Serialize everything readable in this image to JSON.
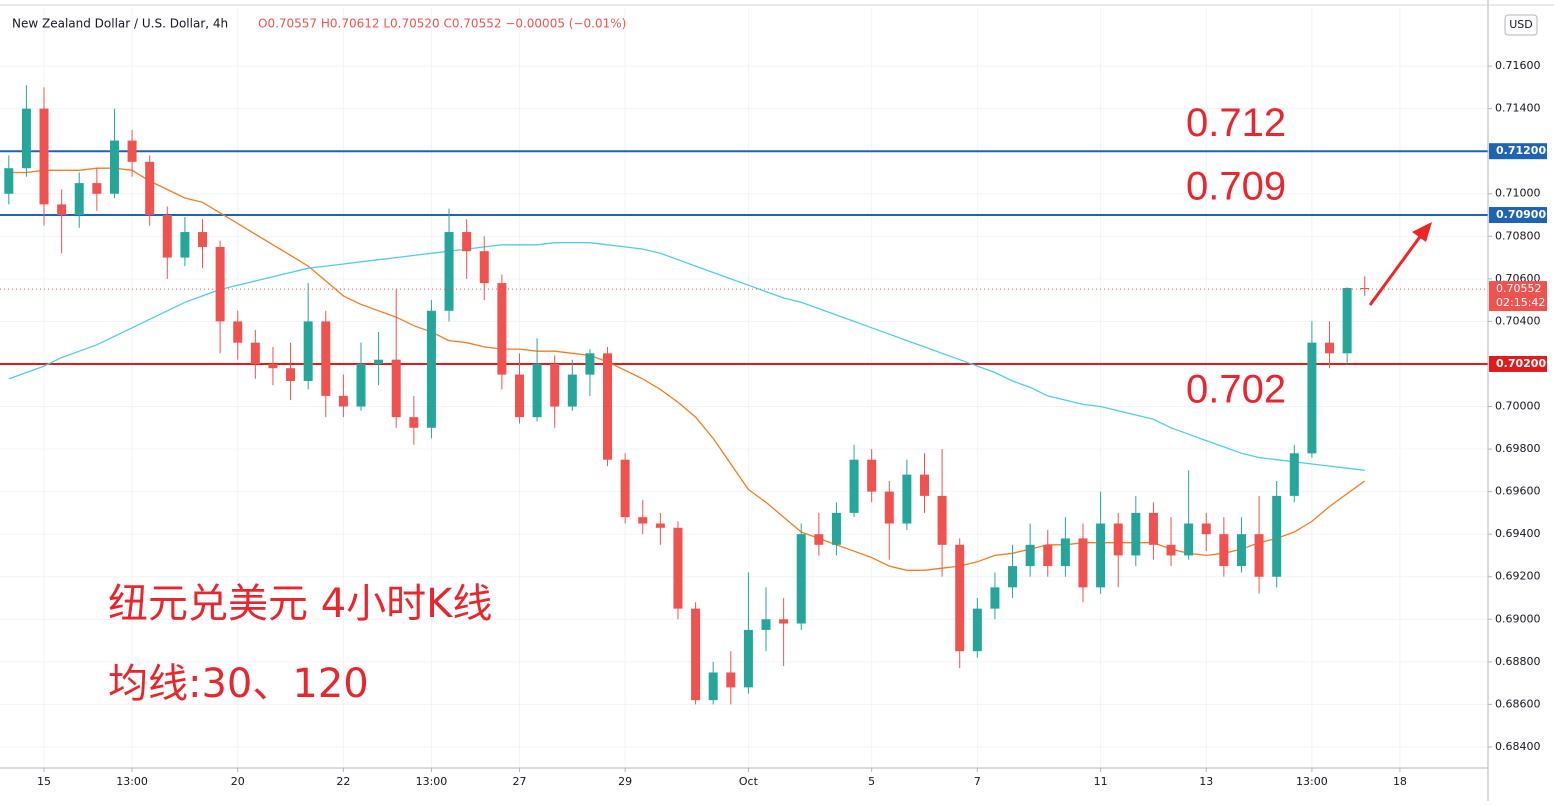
{
  "chart_data": {
    "type": "candlestick",
    "symbol": "New Zealand Dollar / U.S. Dollar, 4h",
    "ohlc_text": "O0.70557 H0.70612 L0.70520 C0.70552 −0.00005 (−0.01%)",
    "currency": "USD",
    "annotations": [
      "纽元兑美元 4小时K线",
      "均线:30、120"
    ],
    "up_color": "#26a69a",
    "down_color": "#ef5350",
    "xlim": [
      -0.5,
      84
    ],
    "xticks": [
      {
        "value": 2,
        "label": "15"
      },
      {
        "value": 7,
        "label": "13:00"
      },
      {
        "value": 13,
        "label": "20"
      },
      {
        "value": 19,
        "label": "22"
      },
      {
        "value": 24,
        "label": "13:00"
      },
      {
        "value": 29,
        "label": "27"
      },
      {
        "value": 35,
        "label": "29"
      },
      {
        "value": 42,
        "label": "Oct"
      },
      {
        "value": 49,
        "label": "5"
      },
      {
        "value": 55,
        "label": "7"
      },
      {
        "value": 62,
        "label": "11"
      },
      {
        "value": 68,
        "label": "13"
      },
      {
        "value": 74,
        "label": "13:00"
      },
      {
        "value": 79,
        "label": "18"
      }
    ],
    "ylim": [
      0.68301,
      0.71873
    ],
    "yticks": [
      {
        "value": 0.684,
        "label": "0.68400"
      },
      {
        "value": 0.686,
        "label": "0.68600"
      },
      {
        "value": 0.688,
        "label": "0.68800"
      },
      {
        "value": 0.69,
        "label": "0.69000"
      },
      {
        "value": 0.692,
        "label": "0.69200"
      },
      {
        "value": 0.694,
        "label": "0.69400"
      },
      {
        "value": 0.696,
        "label": "0.69600"
      },
      {
        "value": 0.698,
        "label": "0.69800"
      },
      {
        "value": 0.7,
        "label": "0.70000"
      },
      {
        "value": 0.702,
        "label": "0.70200"
      },
      {
        "value": 0.704,
        "label": "0.70400"
      },
      {
        "value": 0.706,
        "label": "0.70600"
      },
      {
        "value": 0.708,
        "label": "0.70800"
      },
      {
        "value": 0.71,
        "label": "0.71000"
      },
      {
        "value": 0.712,
        "label": "0.71200"
      },
      {
        "value": 0.714,
        "label": "0.71400"
      },
      {
        "value": 0.716,
        "label": "0.71600"
      }
    ],
    "grid": true,
    "open": [
      0.71,
      0.7112,
      0.714,
      0.7095,
      0.709,
      0.7105,
      0.71,
      0.7125,
      0.7115,
      0.709,
      0.707,
      0.7082,
      0.7075,
      0.704,
      0.703,
      0.702,
      0.7018,
      0.7012,
      0.704,
      0.7005,
      0.7,
      0.702,
      0.7022,
      0.6995,
      0.699,
      0.7045,
      0.7082,
      0.7073,
      0.7058,
      0.7015,
      0.6995,
      0.702,
      0.7,
      0.7015,
      0.7025,
      0.6975,
      0.6948,
      0.6945,
      0.6943,
      0.6905,
      0.6862,
      0.6875,
      0.6868,
      0.6895,
      0.69,
      0.6898,
      0.694,
      0.6935,
      0.695,
      0.6975,
      0.696,
      0.6945,
      0.6968,
      0.6958,
      0.6935,
      0.6885,
      0.6905,
      0.6915,
      0.6925,
      0.6935,
      0.6925,
      0.6938,
      0.6915,
      0.6945,
      0.693,
      0.695,
      0.6935,
      0.693,
      0.6945,
      0.694,
      0.6925,
      0.694,
      0.692,
      0.6958,
      0.6978,
      0.703,
      0.7025,
      0.70557
    ],
    "high": [
      0.7118,
      0.7151,
      0.715,
      0.7102,
      0.711,
      0.7112,
      0.714,
      0.713,
      0.7118,
      0.7094,
      0.7089,
      0.7088,
      0.7078,
      0.7045,
      0.7036,
      0.7028,
      0.703,
      0.7058,
      0.7045,
      0.7015,
      0.703,
      0.7035,
      0.7055,
      0.7005,
      0.705,
      0.7093,
      0.7088,
      0.708,
      0.7062,
      0.7025,
      0.7032,
      0.7024,
      0.7022,
      0.7027,
      0.7028,
      0.6978,
      0.6956,
      0.695,
      0.6946,
      0.6908,
      0.688,
      0.6885,
      0.6922,
      0.6915,
      0.691,
      0.6945,
      0.695,
      0.6955,
      0.6982,
      0.698,
      0.6965,
      0.6975,
      0.6978,
      0.698,
      0.6938,
      0.691,
      0.6922,
      0.6935,
      0.6945,
      0.6942,
      0.6948,
      0.6945,
      0.696,
      0.695,
      0.6958,
      0.6955,
      0.6948,
      0.697,
      0.695,
      0.6948,
      0.6948,
      0.6958,
      0.6965,
      0.6982,
      0.704,
      0.704,
      0.7056,
      0.70612
    ],
    "low": [
      0.7095,
      0.7108,
      0.7085,
      0.7072,
      0.7084,
      0.7092,
      0.7098,
      0.7108,
      0.7085,
      0.706,
      0.7066,
      0.7065,
      0.7025,
      0.7022,
      0.7013,
      0.701,
      0.7003,
      0.7008,
      0.6995,
      0.6995,
      0.6998,
      0.701,
      0.699,
      0.6982,
      0.6985,
      0.704,
      0.706,
      0.705,
      0.7008,
      0.6992,
      0.6993,
      0.699,
      0.6998,
      0.7005,
      0.6972,
      0.6945,
      0.694,
      0.6935,
      0.69,
      0.686,
      0.686,
      0.686,
      0.6865,
      0.6885,
      0.6878,
      0.6895,
      0.693,
      0.693,
      0.6948,
      0.6955,
      0.6928,
      0.6942,
      0.695,
      0.692,
      0.6877,
      0.6882,
      0.69,
      0.691,
      0.692,
      0.692,
      0.692,
      0.6908,
      0.6912,
      0.6915,
      0.6925,
      0.6928,
      0.6925,
      0.6928,
      0.6932,
      0.692,
      0.6922,
      0.6912,
      0.6915,
      0.6955,
      0.6976,
      0.7018,
      0.702,
      0.7052
    ],
    "close": [
      0.7112,
      0.714,
      0.7095,
      0.709,
      0.7105,
      0.71,
      0.7125,
      0.7115,
      0.709,
      0.707,
      0.7082,
      0.7075,
      0.704,
      0.703,
      0.702,
      0.7018,
      0.7012,
      0.704,
      0.7005,
      0.7,
      0.702,
      0.7022,
      0.6995,
      0.699,
      0.7045,
      0.7082,
      0.7073,
      0.7058,
      0.7015,
      0.6995,
      0.702,
      0.7,
      0.7015,
      0.7025,
      0.6975,
      0.6948,
      0.6945,
      0.6943,
      0.6905,
      0.6862,
      0.6875,
      0.6868,
      0.6895,
      0.69,
      0.6898,
      0.694,
      0.6935,
      0.695,
      0.6975,
      0.696,
      0.6945,
      0.6968,
      0.6958,
      0.6935,
      0.6885,
      0.6905,
      0.6915,
      0.6925,
      0.6935,
      0.6925,
      0.6938,
      0.6915,
      0.6945,
      0.693,
      0.695,
      0.6935,
      0.693,
      0.6945,
      0.694,
      0.6925,
      0.694,
      0.692,
      0.6958,
      0.6978,
      0.703,
      0.7025,
      0.70557,
      0.70552
    ],
    "moving_averages": [
      {
        "color": "#f57c20",
        "values": [
          0.711,
          0.711,
          0.7111,
          0.7111,
          0.7111,
          0.7112,
          0.7112,
          0.7111,
          0.7106,
          0.7102,
          0.7098,
          0.7096,
          0.7091,
          0.7086,
          0.7081,
          0.7076,
          0.7071,
          0.7066,
          0.7059,
          0.7052,
          0.7048,
          0.7045,
          0.7042,
          0.7038,
          0.7035,
          0.7031,
          0.703,
          0.7028,
          0.7027,
          0.7027,
          0.7026,
          0.7026,
          0.7025,
          0.7024,
          0.7021,
          0.7017,
          0.7013,
          0.7008,
          0.7002,
          0.6995,
          0.6985,
          0.6973,
          0.6961,
          0.6955,
          0.6948,
          0.6941,
          0.6938,
          0.6935,
          0.6932,
          0.6929,
          0.6925,
          0.6923,
          0.6923,
          0.6924,
          0.6925,
          0.6927,
          0.693,
          0.6931,
          0.6933,
          0.6935,
          0.6935,
          0.6936,
          0.6936,
          0.6936,
          0.6936,
          0.6936,
          0.6933,
          0.6931,
          0.693,
          0.6931,
          0.6933,
          0.6936,
          0.6938,
          0.6941,
          0.6946,
          0.6953,
          0.6959,
          0.6965
        ]
      },
      {
        "color": "#4dd0e1",
        "values": [
          0.7013,
          0.7016,
          0.7019,
          0.7023,
          0.7026,
          0.7029,
          0.7033,
          0.7037,
          0.7041,
          0.7045,
          0.7049,
          0.7052,
          0.7055,
          0.7057,
          0.7059,
          0.7061,
          0.7063,
          0.7065,
          0.7066,
          0.7067,
          0.7068,
          0.7069,
          0.707,
          0.7071,
          0.7072,
          0.7073,
          0.7074,
          0.7075,
          0.7076,
          0.7076,
          0.7076,
          0.7077,
          0.7077,
          0.7077,
          0.7076,
          0.7075,
          0.7074,
          0.7072,
          0.7069,
          0.7066,
          0.7063,
          0.706,
          0.7057,
          0.7054,
          0.7051,
          0.7049,
          0.7046,
          0.7043,
          0.704,
          0.7037,
          0.7034,
          0.7031,
          0.7028,
          0.7025,
          0.7022,
          0.7019,
          0.7016,
          0.7012,
          0.7009,
          0.7005,
          0.7003,
          0.7001,
          0.7,
          0.6998,
          0.6996,
          0.6994,
          0.699,
          0.6987,
          0.6984,
          0.6981,
          0.6978,
          0.6976,
          0.6975,
          0.6974,
          0.6973,
          0.6972,
          0.6971,
          0.697
        ]
      }
    ],
    "levels": [
      {
        "value": 0.712,
        "axis_label": "0.71200",
        "color": "#1e63b5"
      },
      {
        "value": 0.709,
        "axis_label": "0.70900",
        "color": "#1e63b5"
      },
      {
        "value": 0.702,
        "axis_label": "0.70200",
        "color": "#e01b1b"
      }
    ],
    "current_price": {
      "value": 0.70552,
      "label": "0.70552",
      "countdown": "02:15:42",
      "color": "#ef5350"
    }
  }
}
